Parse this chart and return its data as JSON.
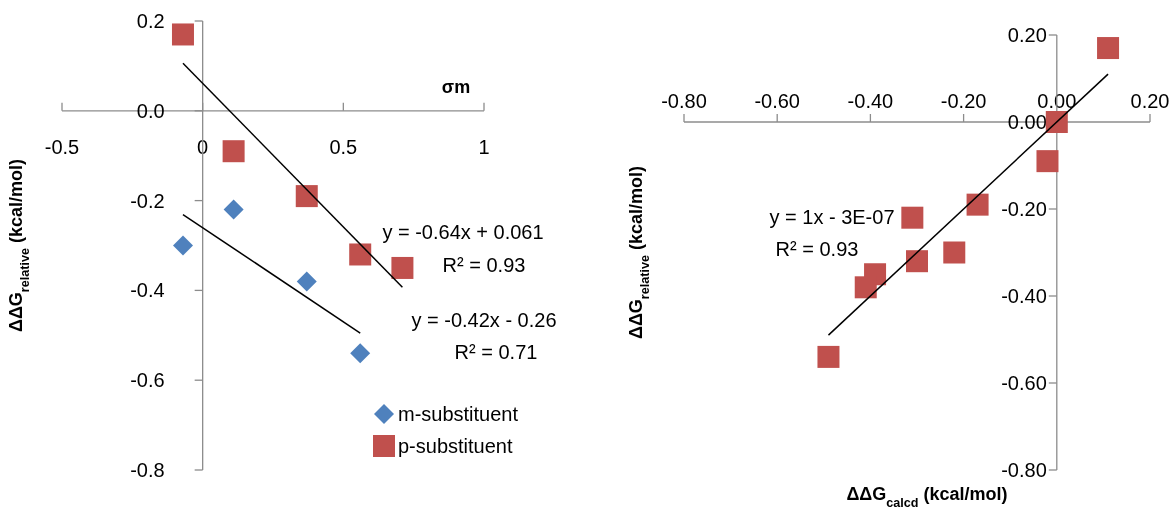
{
  "chart_data": [
    {
      "type": "scatter",
      "xlabel": "σm",
      "ylabel": "ΔΔG$_{relative}$ (kcal/mol)",
      "xlim": [
        -0.5,
        1
      ],
      "xticks": [
        -0.5,
        0,
        0.5,
        1
      ],
      "ylim": [
        -0.8,
        0.2
      ],
      "yticks": [
        {
          "value": -0.8,
          "label": "-0.8"
        },
        {
          "value": -0.6,
          "label": "-0.6"
        },
        {
          "value": -0.4,
          "label": "-0.4"
        },
        {
          "value": -0.2,
          "label": "-0.2"
        },
        {
          "value": 0,
          "label": "0.0"
        },
        0.2
      ],
      "grid": false,
      "legend": "bottom right",
      "series": [
        {
          "name": "m-substituent",
          "color": "#4f81bd",
          "marker": "diamond",
          "x": [
            -0.07,
            0.11,
            0.37,
            0.56
          ],
          "values": [
            -0.3,
            -0.22,
            -0.38,
            -0.54
          ]
        },
        {
          "name": "p-substituent",
          "color": "#c0504d",
          "marker": "square",
          "x": [
            -0.07,
            0.11,
            0.37,
            0.56,
            0.71
          ],
          "values": [
            0.17,
            -0.09,
            -0.19,
            -0.32,
            -0.35
          ]
        },
        {
          "type": "line",
          "color": "#000000",
          "marker": "none",
          "x": [
            -0.07,
            0.71
          ],
          "values": [
            0.106,
            -0.393
          ]
        },
        {
          "type": "line",
          "color": "#000000",
          "marker": "none",
          "x": [
            -0.07,
            0.56
          ],
          "values": [
            -0.231,
            -0.495
          ]
        }
      ],
      "annotations": [
        "y = -0.64x + 0.061",
        "R² = 0.93",
        "y = -0.42x - 0.26",
        "R² = 0.71"
      ]
    },
    {
      "type": "scatter",
      "xlabel": "ΔΔG$_{calcd}$ (kcal/mol)",
      "ylabel": "ΔΔG$_{relative}$ (kcal/mol)",
      "xlim": [
        -0.8,
        0.2
      ],
      "xticks": [
        {
          "value": -0.8,
          "label": "-0.80"
        },
        {
          "value": -0.6,
          "label": "-0.60"
        },
        {
          "value": -0.4,
          "label": "-0.40"
        },
        {
          "value": -0.2,
          "label": "-0.20"
        },
        {
          "value": 0,
          "label": "0.00"
        },
        {
          "value": 0.2,
          "label": "0.20"
        }
      ],
      "ylim": [
        -0.8,
        0.2
      ],
      "yticks": [
        {
          "value": -0.8,
          "label": "-0.80"
        },
        {
          "value": -0.6,
          "label": "-0.60"
        },
        {
          "value": -0.4,
          "label": "-0.40"
        },
        {
          "value": -0.2,
          "label": "-0.20"
        },
        {
          "value": 0,
          "label": "0.00"
        },
        {
          "value": 0.2,
          "label": "0.20"
        }
      ],
      "grid": false,
      "series": [
        {
          "color": "#c0504d",
          "marker": "square",
          "x": [
            0.11,
            0.0,
            -0.02,
            -0.17,
            -0.22,
            -0.31,
            -0.3,
            -0.39,
            -0.41,
            -0.49
          ],
          "values": [
            0.17,
            0.0,
            -0.09,
            -0.19,
            -0.3,
            -0.22,
            -0.32,
            -0.35,
            -0.38,
            -0.54
          ]
        },
        {
          "type": "line",
          "color": "#000000",
          "marker": "none",
          "x": [
            -0.49,
            0.11
          ],
          "values": [
            -0.49,
            0.11
          ]
        }
      ],
      "annotations": [
        "y = 1x - 3E-07",
        "R² = 0.93"
      ]
    }
  ]
}
